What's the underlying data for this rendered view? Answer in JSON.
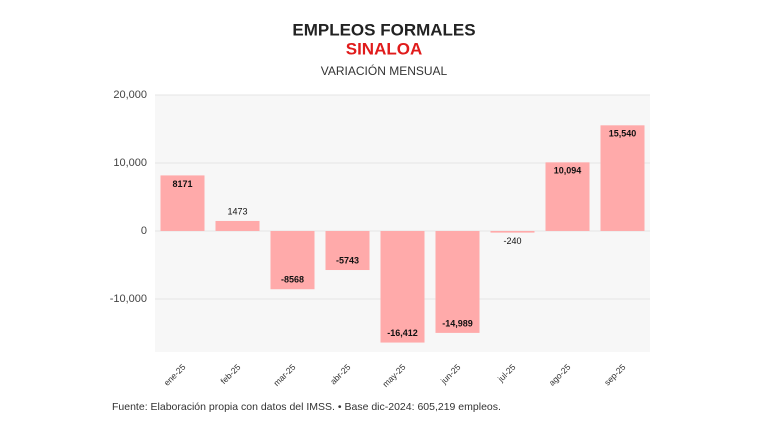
{
  "chart_data": {
    "type": "bar",
    "title": "EMPLEOS FORMALES",
    "subtitle": "SINALOA",
    "chart_label": "VARIACIÓN MENSUAL",
    "categories": [
      "ene-25",
      "feb-25",
      "mar-25",
      "abr-25",
      "may-25",
      "jun-25",
      "jul-25",
      "ago-25",
      "sep-25"
    ],
    "values": [
      8171,
      1473,
      -8568,
      -5743,
      -16412,
      -14989,
      -240,
      10094,
      15540
    ],
    "value_labels": [
      "8171",
      "1473",
      "-8568",
      "-5743",
      "-16,412",
      "-14,989",
      "-240",
      "10,094",
      "15,540"
    ],
    "color": "#ffaaaa",
    "ylim": [
      -17800,
      20000
    ],
    "yticks": [
      {
        "value": 20000,
        "label": "20,000"
      },
      {
        "value": 10000,
        "label": "10,000"
      },
      0,
      {
        "value": -10000,
        "label": "-10,000"
      }
    ],
    "grid": true,
    "source": "Fuente: Elaboración propia con datos del IMSS. • Base dic-2024: 605,219 empleos."
  }
}
